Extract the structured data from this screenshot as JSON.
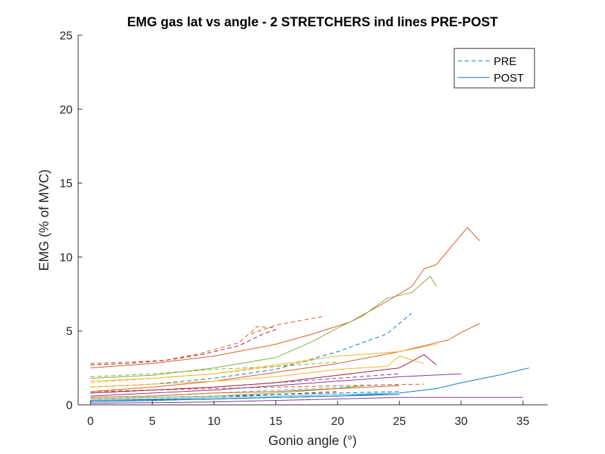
{
  "chart_data": {
    "type": "line",
    "title": "EMG gas lat vs angle - 2 STRETCHERS ind lines PRE-POST",
    "xlabel": "Gonio angle (°)",
    "ylabel": "EMG (% of MVC)",
    "xlim": [
      -1,
      37
    ],
    "ylim": [
      0,
      25
    ],
    "xticks": [
      0,
      5,
      10,
      15,
      20,
      25,
      30,
      35
    ],
    "yticks": [
      0,
      5,
      10,
      15,
      20,
      25
    ],
    "grid": false,
    "legend_position": "top-right",
    "legend": [
      {
        "label": "PRE",
        "style": "dashed",
        "color": "#0072BD"
      },
      {
        "label": "POST",
        "style": "solid",
        "color": "#0072BD"
      }
    ],
    "series": [
      {
        "style": "dashed",
        "color": "#D95319",
        "x": [
          0,
          3,
          6,
          9,
          12,
          13.5,
          15
        ],
        "y": [
          2.8,
          2.9,
          3.0,
          3.5,
          4.2,
          5.3,
          5.2
        ]
      },
      {
        "style": "dashed",
        "color": "#A2142F",
        "x": [
          0,
          3,
          6,
          9,
          12,
          14,
          15
        ],
        "y": [
          2.7,
          2.8,
          3.0,
          3.4,
          4.0,
          4.8,
          5.1
        ]
      },
      {
        "style": "dashed",
        "color": "#D95319",
        "x": [
          13,
          15,
          17,
          19
        ],
        "y": [
          4.8,
          5.4,
          5.7,
          6.0
        ]
      },
      {
        "style": "dashed",
        "color": "#0072BD",
        "x": [
          0,
          5,
          10,
          15,
          20,
          24,
          26
        ],
        "y": [
          1.2,
          1.4,
          1.8,
          2.4,
          3.6,
          4.8,
          6.2
        ]
      },
      {
        "style": "dashed",
        "color": "#EDB120",
        "x": [
          0,
          5,
          10,
          15,
          18
        ],
        "y": [
          1.5,
          1.8,
          2.1,
          2.6,
          3.0
        ]
      },
      {
        "style": "dashed",
        "color": "#77AC30",
        "x": [
          0,
          5,
          10,
          15,
          20
        ],
        "y": [
          1.9,
          2.1,
          2.4,
          2.6,
          2.9
        ]
      },
      {
        "style": "dashed",
        "color": "#7E2F8E",
        "x": [
          0,
          5,
          10,
          15,
          20,
          25
        ],
        "y": [
          0.8,
          1.0,
          1.2,
          1.5,
          1.8,
          2.1
        ]
      },
      {
        "style": "dashed",
        "color": "#4DBEEE",
        "x": [
          0,
          5,
          10,
          15,
          20,
          25
        ],
        "y": [
          0.5,
          0.6,
          0.8,
          1.0,
          1.2,
          1.4
        ]
      },
      {
        "style": "dashed",
        "color": "#D95319",
        "x": [
          0,
          5,
          10,
          15,
          20,
          27
        ],
        "y": [
          0.9,
          1.0,
          1.1,
          1.2,
          1.3,
          1.4
        ]
      },
      {
        "style": "dashed",
        "color": "#A2142F",
        "x": [
          0,
          5,
          10,
          15,
          20
        ],
        "y": [
          0.3,
          0.4,
          0.5,
          0.7,
          0.9
        ]
      },
      {
        "style": "dashed",
        "color": "#EDB120",
        "x": [
          0,
          5,
          10,
          15,
          20
        ],
        "y": [
          0.2,
          0.3,
          0.4,
          0.5,
          0.6
        ]
      },
      {
        "style": "dashed",
        "color": "#0072BD",
        "x": [
          0,
          5,
          10,
          15,
          20,
          25
        ],
        "y": [
          0.4,
          0.5,
          0.6,
          0.7,
          0.8,
          0.9
        ]
      },
      {
        "style": "solid",
        "color": "#D95319",
        "x": [
          0,
          5,
          10,
          15,
          18,
          21,
          24,
          26,
          27,
          28,
          30,
          30.5,
          31.5
        ],
        "y": [
          2.5,
          2.8,
          3.3,
          4.1,
          4.8,
          5.6,
          7.0,
          8.0,
          9.2,
          9.5,
          11.5,
          12.0,
          11.1
        ]
      },
      {
        "style": "solid",
        "color": "#77AC30",
        "x": [
          0,
          5,
          10,
          15,
          18,
          20,
          22,
          24,
          26,
          27.5,
          28
        ],
        "y": [
          1.8,
          2.0,
          2.5,
          3.2,
          4.3,
          5.2,
          6.0,
          7.2,
          7.6,
          8.7,
          8.0
        ]
      },
      {
        "style": "solid",
        "color": "#D95319",
        "x": [
          0,
          5,
          10,
          15,
          20,
          25,
          29,
          30,
          31,
          31.5
        ],
        "y": [
          0.9,
          1.2,
          1.6,
          2.2,
          2.8,
          3.6,
          4.4,
          4.9,
          5.3,
          5.5
        ]
      },
      {
        "style": "solid",
        "color": "#EDB120",
        "x": [
          0,
          5,
          10,
          15,
          20,
          25,
          28
        ],
        "y": [
          1.6,
          1.8,
          2.1,
          2.7,
          3.3,
          3.6,
          4.1
        ]
      },
      {
        "style": "solid",
        "color": "#A2142F",
        "x": [
          0,
          5,
          10,
          15,
          20,
          25,
          27,
          28
        ],
        "y": [
          0.8,
          1.0,
          1.2,
          1.5,
          2.0,
          2.5,
          3.4,
          2.7
        ]
      },
      {
        "style": "solid",
        "color": "#EDB120",
        "x": [
          0,
          5,
          10,
          15,
          20,
          24,
          25,
          27
        ],
        "y": [
          1.2,
          1.4,
          1.6,
          1.9,
          2.4,
          2.6,
          3.3,
          2.8
        ]
      },
      {
        "style": "solid",
        "color": "#7E2F8E",
        "x": [
          0,
          5,
          10,
          15,
          20,
          25,
          30
        ],
        "y": [
          0.6,
          0.8,
          1.0,
          1.3,
          1.6,
          1.9,
          2.1
        ]
      },
      {
        "style": "solid",
        "color": "#0072BD",
        "x": [
          0,
          5,
          10,
          15,
          20,
          25,
          28,
          30,
          33,
          35.5
        ],
        "y": [
          0.2,
          0.3,
          0.4,
          0.5,
          0.6,
          0.8,
          1.1,
          1.5,
          2.0,
          2.5
        ]
      },
      {
        "style": "solid",
        "color": "#7E2F8E",
        "x": [
          0,
          5,
          10,
          15,
          20,
          25,
          30,
          35
        ],
        "y": [
          0.1,
          0.15,
          0.2,
          0.3,
          0.4,
          0.5,
          0.5,
          0.5
        ]
      },
      {
        "style": "solid",
        "color": "#4DBEEE",
        "x": [
          0,
          5,
          10,
          15,
          20,
          25
        ],
        "y": [
          0.3,
          0.4,
          0.5,
          0.6,
          0.7,
          0.8
        ]
      },
      {
        "style": "solid",
        "color": "#77AC30",
        "x": [
          0,
          5,
          10,
          15,
          20,
          22
        ],
        "y": [
          0.4,
          0.5,
          0.6,
          0.8,
          1.1,
          1.3
        ]
      },
      {
        "style": "solid",
        "color": "#D95319",
        "x": [
          0,
          5,
          10,
          15,
          20,
          25
        ],
        "y": [
          0.5,
          0.6,
          0.8,
          0.9,
          1.1,
          1.3
        ]
      },
      {
        "style": "solid",
        "color": "#0072BD",
        "x": [
          0,
          5,
          10,
          15,
          20,
          25
        ],
        "y": [
          0.3,
          0.35,
          0.4,
          0.5,
          0.6,
          0.7
        ]
      }
    ]
  }
}
